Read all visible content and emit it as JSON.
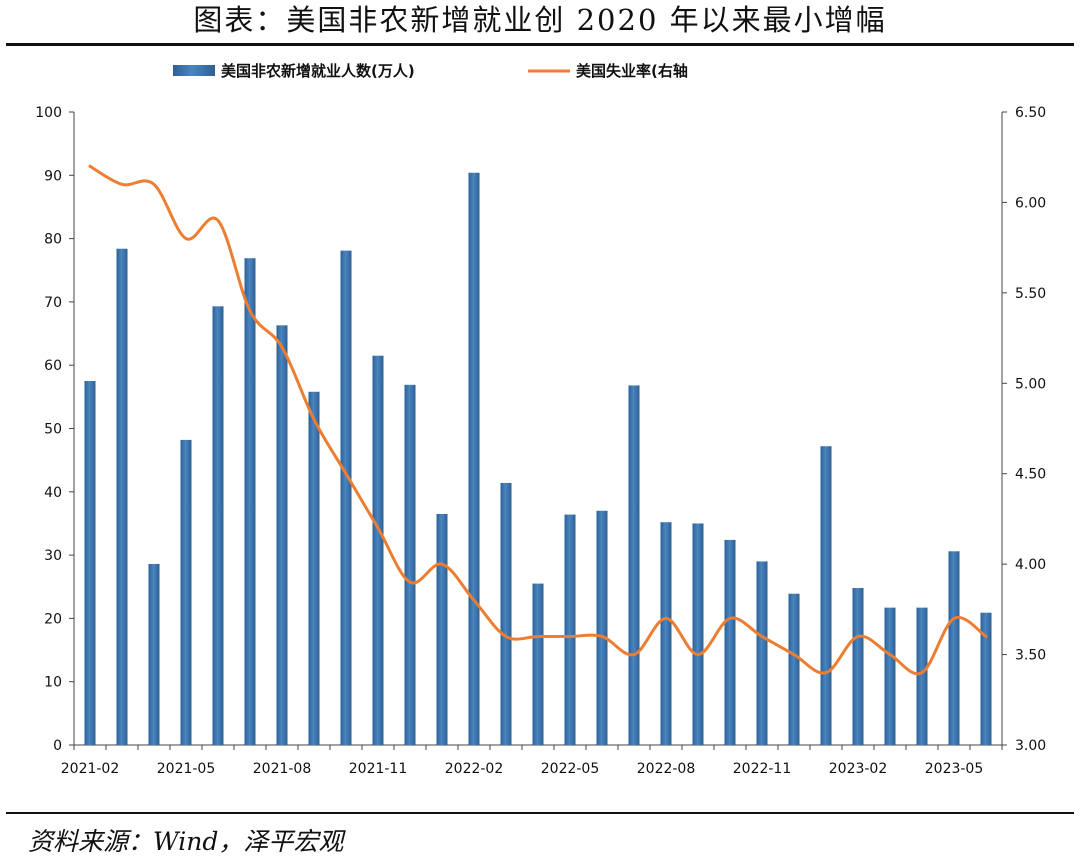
{
  "title": "图表：美国非农新增就业创 2020 年以来最小增幅",
  "source": "资料来源：Wind，泽平宏观",
  "chart_data": {
    "type": "bar+line",
    "legend": {
      "bar_label": "美国非农新增就业人数(万人)",
      "line_label": "美国失业率(右轴",
      "placement": "top-center"
    },
    "colors": {
      "bar": "#4a86c0",
      "bar_dark": "#2e5f93",
      "line": "#ed7d31"
    },
    "x_tick_labels": [
      "2021-02",
      "2021-05",
      "2021-08",
      "2021-11",
      "2022-02",
      "2022-05",
      "2022-08",
      "2022-11",
      "2023-02",
      "2023-05"
    ],
    "y_left": {
      "range": [
        0,
        100
      ],
      "ticks": [
        "0",
        "10",
        "20",
        "30",
        "40",
        "50",
        "60",
        "70",
        "80",
        "90",
        "100"
      ]
    },
    "y_right": {
      "range": [
        3.0,
        6.5
      ],
      "ticks": [
        "3.00",
        "3.50",
        "4.00",
        "4.50",
        "5.00",
        "5.50",
        "6.00",
        "6.50"
      ]
    },
    "months": [
      "2021-02",
      "2021-03",
      "2021-04",
      "2021-05",
      "2021-06",
      "2021-07",
      "2021-08",
      "2021-09",
      "2021-10",
      "2021-11",
      "2021-12",
      "2022-01",
      "2022-02",
      "2022-03",
      "2022-04",
      "2022-05",
      "2022-06",
      "2022-07",
      "2022-08",
      "2022-09",
      "2022-10",
      "2022-11",
      "2022-12",
      "2023-01",
      "2023-02",
      "2023-03",
      "2023-04",
      "2023-05",
      "2023-06"
    ],
    "series": [
      {
        "name": "美国非农新增就业人数(万人)",
        "axis": "left",
        "kind": "bar",
        "values": [
          57.5,
          78.4,
          28.6,
          48.2,
          69.3,
          76.9,
          66.3,
          55.8,
          78.1,
          61.5,
          56.9,
          36.5,
          90.4,
          41.4,
          25.5,
          36.4,
          37.0,
          56.8,
          35.2,
          35.0,
          32.4,
          29.0,
          23.9,
          47.2,
          24.8,
          21.7,
          21.7,
          30.6,
          20.9
        ]
      },
      {
        "name": "美国失业率(右轴",
        "axis": "right",
        "kind": "line",
        "values": [
          6.2,
          6.1,
          6.1,
          5.8,
          5.9,
          5.4,
          5.2,
          4.8,
          4.5,
          4.2,
          3.9,
          4.0,
          3.8,
          3.6,
          3.6,
          3.6,
          3.6,
          3.5,
          3.7,
          3.5,
          3.7,
          3.6,
          3.5,
          3.4,
          3.6,
          3.5,
          3.4,
          3.7,
          3.6
        ]
      }
    ]
  }
}
